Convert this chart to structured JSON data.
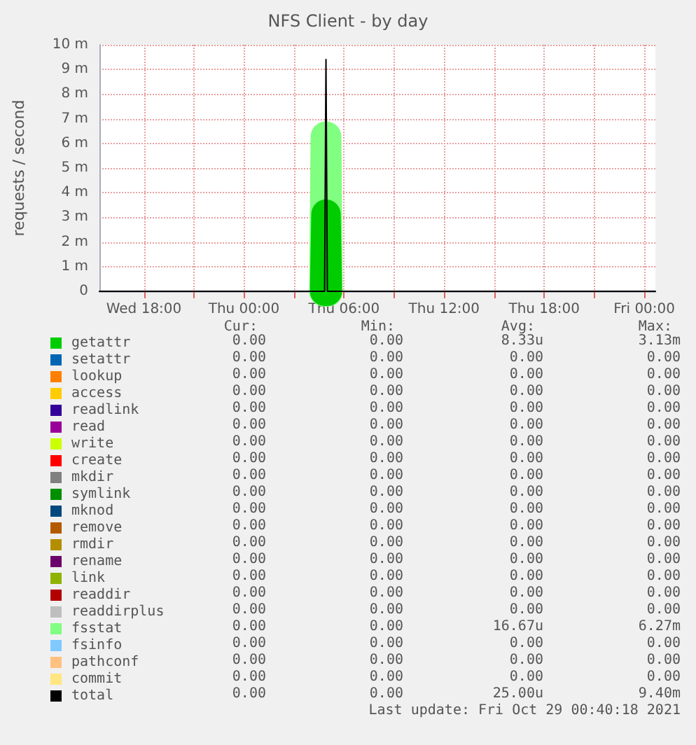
{
  "chart_data": {
    "type": "line",
    "title": "NFS Client - by day",
    "ylabel": "requests / second",
    "x": [
      "2021-10-27T15:20",
      "2021-10-28T04:50",
      "2021-10-28T04:55",
      "2021-10-28T05:00",
      "2021-10-29T00:40"
    ],
    "xlim": [
      "2021-10-27T15:20",
      "2021-10-29T00:40"
    ],
    "xticks": [
      {
        "value": "2021-10-27T18:00",
        "label": "Wed 18:00"
      },
      {
        "value": "2021-10-27T21:00",
        "label": null
      },
      {
        "value": "2021-10-28T00:00",
        "label": "Thu 00:00"
      },
      {
        "value": "2021-10-28T03:00",
        "label": null
      },
      {
        "value": "2021-10-28T06:00",
        "label": "Thu 06:00"
      },
      {
        "value": "2021-10-28T09:00",
        "label": null
      },
      {
        "value": "2021-10-28T12:00",
        "label": "Thu 12:00"
      },
      {
        "value": "2021-10-28T15:00",
        "label": null
      },
      {
        "value": "2021-10-28T18:00",
        "label": "Thu 18:00"
      },
      {
        "value": "2021-10-28T21:00",
        "label": null
      },
      {
        "value": "2021-10-29T00:00",
        "label": "Fri 00:00"
      }
    ],
    "ylim": [
      0,
      10
    ],
    "yticks": [
      0,
      {
        "value": 1,
        "label": "1 m"
      },
      {
        "value": 2,
        "label": "2 m"
      },
      {
        "value": 3,
        "label": "3 m"
      },
      {
        "value": 4,
        "label": "4 m"
      },
      {
        "value": 5,
        "label": "5 m"
      },
      {
        "value": 6,
        "label": "6 m"
      },
      {
        "value": 7,
        "label": "7 m"
      },
      {
        "value": 8,
        "label": "8 m"
      },
      {
        "value": 9,
        "label": "9 m"
      },
      {
        "value": 10,
        "label": "10 m"
      }
    ],
    "grid": true,
    "legend": "bottom",
    "marker": "none",
    "line_style": "solid",
    "series": [
      {
        "name": "getattr",
        "color": "#00cc00",
        "values": [
          null,
          0,
          3.13,
          0,
          null
        ]
      },
      {
        "name": "setattr",
        "color": "#0066b3",
        "values": [
          null,
          null,
          null,
          null,
          null
        ]
      },
      {
        "name": "lookup",
        "color": "#ff8000",
        "values": [
          null,
          null,
          null,
          null,
          null
        ]
      },
      {
        "name": "access",
        "color": "#ffcc00",
        "values": [
          null,
          null,
          null,
          null,
          null
        ]
      },
      {
        "name": "readlink",
        "color": "#330099",
        "values": [
          null,
          null,
          null,
          null,
          null
        ]
      },
      {
        "name": "read",
        "color": "#990099",
        "values": [
          null,
          null,
          null,
          null,
          null
        ]
      },
      {
        "name": "write",
        "color": "#ccff00",
        "values": [
          null,
          null,
          null,
          null,
          null
        ]
      },
      {
        "name": "create",
        "color": "#ff0000",
        "values": [
          null,
          null,
          null,
          null,
          null
        ]
      },
      {
        "name": "mkdir",
        "color": "#808080",
        "values": [
          null,
          null,
          null,
          null,
          null
        ]
      },
      {
        "name": "symlink",
        "color": "#008f00",
        "values": [
          null,
          null,
          null,
          null,
          null
        ]
      },
      {
        "name": "mknod",
        "color": "#00487d",
        "values": [
          null,
          null,
          null,
          null,
          null
        ]
      },
      {
        "name": "remove",
        "color": "#b35a00",
        "values": [
          null,
          null,
          null,
          null,
          null
        ]
      },
      {
        "name": "rmdir",
        "color": "#b38f00",
        "values": [
          null,
          null,
          null,
          null,
          null
        ]
      },
      {
        "name": "rename",
        "color": "#6b006b",
        "values": [
          null,
          null,
          null,
          null,
          null
        ]
      },
      {
        "name": "link",
        "color": "#8fb300",
        "values": [
          null,
          null,
          null,
          null,
          null
        ]
      },
      {
        "name": "readdir",
        "color": "#b30000",
        "values": [
          null,
          null,
          null,
          null,
          null
        ]
      },
      {
        "name": "readdirplus",
        "color": "#bebebe",
        "values": [
          null,
          null,
          null,
          null,
          null
        ]
      },
      {
        "name": "fsstat",
        "color": "#80ff80",
        "values": [
          null,
          0,
          6.27,
          0,
          null
        ]
      },
      {
        "name": "fsinfo",
        "color": "#80c9ff",
        "values": [
          null,
          null,
          null,
          null,
          null
        ]
      },
      {
        "name": "pathconf",
        "color": "#ffc080",
        "values": [
          null,
          null,
          null,
          null,
          null
        ]
      },
      {
        "name": "commit",
        "color": "#ffe680",
        "values": [
          null,
          null,
          null,
          null,
          null
        ]
      },
      {
        "name": "total",
        "color": "#000000",
        "values": [
          0,
          0,
          9.4,
          0,
          0
        ]
      }
    ],
    "annotations": [
      "Cur:",
      "Min:",
      "Avg:",
      "Max:",
      "0.00",
      "0.00",
      "8.33u",
      "3.13m",
      "0.00",
      "0.00",
      "0.00",
      "0.00",
      "0.00",
      "0.00",
      "0.00",
      "0.00",
      "0.00",
      "0.00",
      "0.00",
      "0.00",
      "0.00",
      "0.00",
      "0.00",
      "0.00",
      "0.00",
      "0.00",
      "0.00",
      "0.00",
      "0.00",
      "0.00",
      "0.00",
      "0.00",
      "0.00",
      "0.00",
      "0.00",
      "0.00",
      "0.00",
      "0.00",
      "0.00",
      "0.00",
      "0.00",
      "0.00",
      "0.00",
      "0.00",
      "0.00",
      "0.00",
      "0.00",
      "0.00",
      "0.00",
      "0.00",
      "0.00",
      "0.00",
      "0.00",
      "0.00",
      "0.00",
      "0.00",
      "0.00",
      "0.00",
      "0.00",
      "0.00",
      "0.00",
      "0.00",
      "0.00",
      "0.00",
      "0.00",
      "0.00",
      "0.00",
      "0.00",
      "0.00",
      "0.00",
      "0.00",
      "0.00",
      "0.00",
      "0.00",
      "16.67u",
      "6.27m",
      "0.00",
      "0.00",
      "0.00",
      "0.00",
      "0.00",
      "0.00",
      "0.00",
      "0.00",
      "0.00",
      "0.00",
      "0.00",
      "0.00",
      "0.00",
      "0.00",
      "25.00u",
      "9.40m",
      "Last update: Fri Oct 29 00:40:18 2021"
    ]
  }
}
